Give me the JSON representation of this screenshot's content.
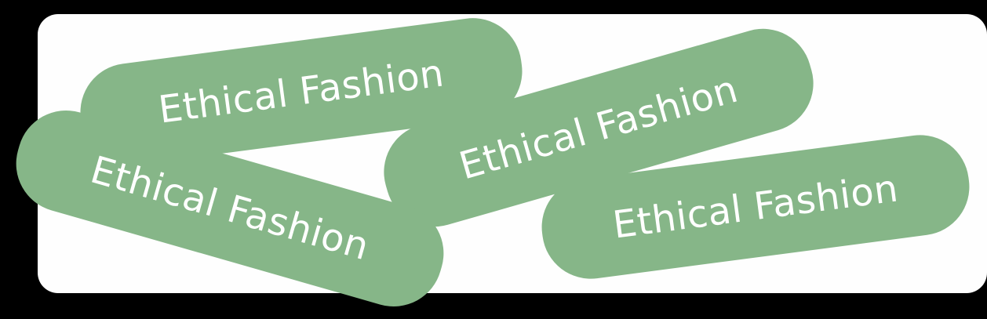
{
  "colors": {
    "background": "#000000",
    "card": "#fefefe",
    "pill": "#86b688",
    "pill_text": "#ffffff"
  },
  "stickers": [
    {
      "label": "Ethical Fashion"
    },
    {
      "label": "Ethical Fashion"
    },
    {
      "label": "Ethical Fashion"
    },
    {
      "label": "Ethical Fashion"
    }
  ]
}
